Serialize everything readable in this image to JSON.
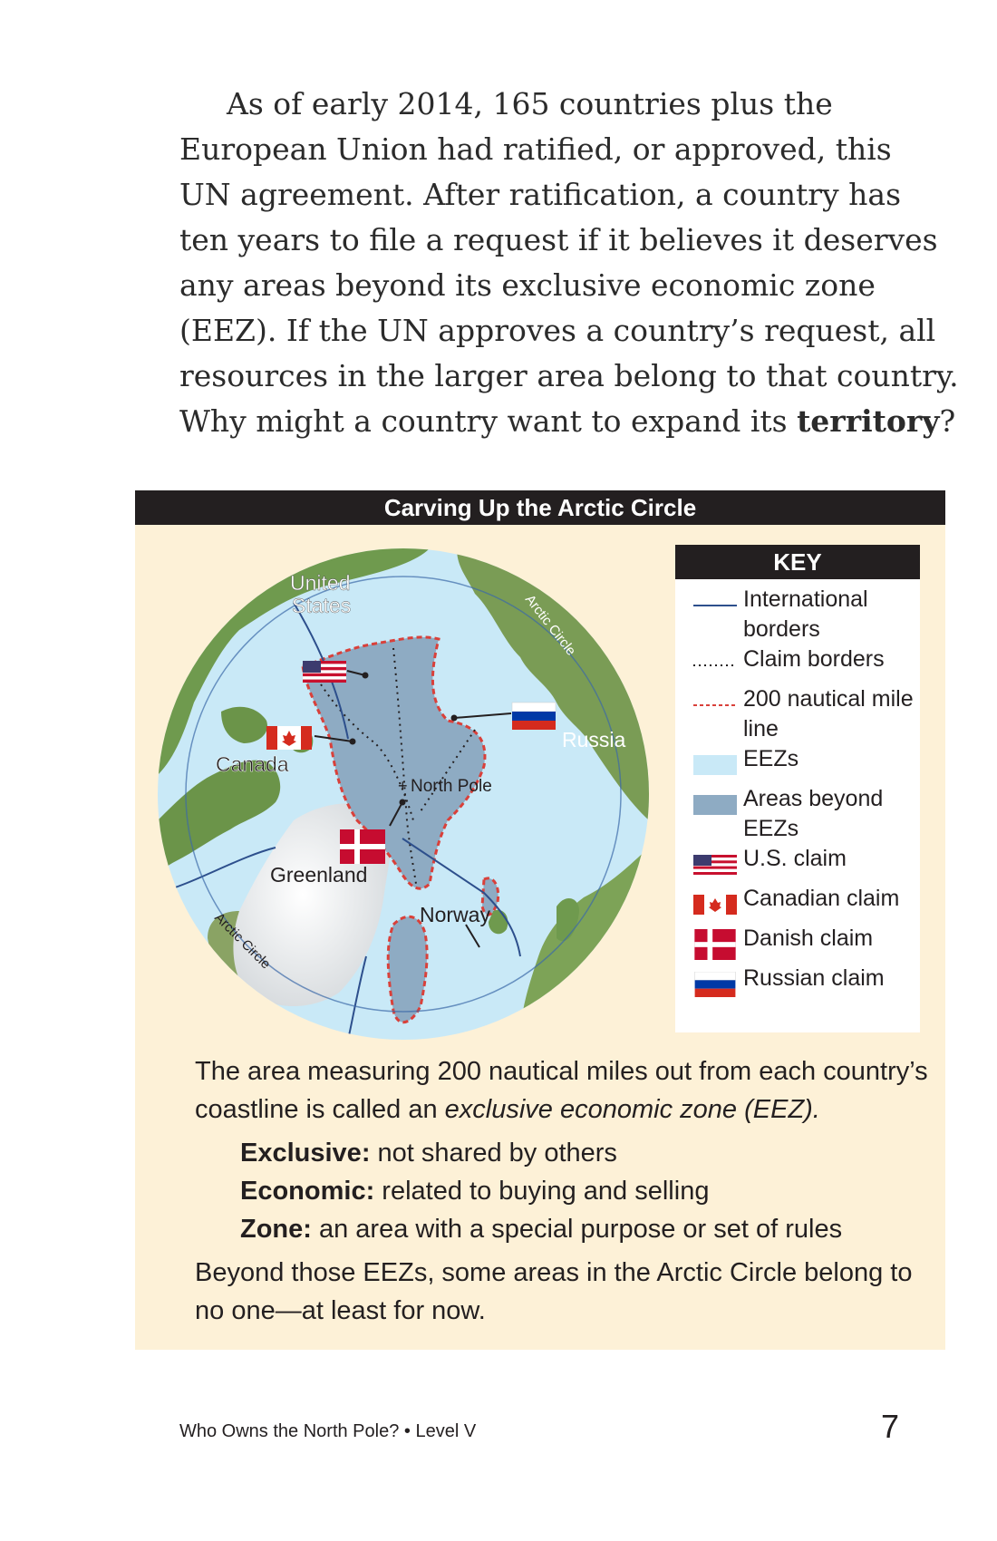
{
  "intro": {
    "lines": [
      "As of early 2014, 165 countries plus the",
      "European Union had ratified, or approved, this",
      "UN agreement. After ratification, a country has",
      "ten years to file a request if it believes it deserves",
      "any areas beyond its exclusive economic zone",
      "(EEZ). If the UN approves a country’s request, all",
      "resources in the larger area belong to that country."
    ],
    "last_line_before": "Why might a country want to expand its ",
    "last_line_bold": "territory",
    "last_line_after": "?"
  },
  "sidebar": {
    "title": "Carving Up the Arctic Circle",
    "map": {
      "labels": {
        "united_states_1": "United",
        "united_states_2": "States",
        "canada": "Canada",
        "greenland": "Greenland",
        "russia": "Russia",
        "norway": "Norway",
        "north_pole": "North Pole",
        "arctic_circle_top": "Arctic Circle",
        "arctic_circle_bottom": "Arctic Circle"
      }
    },
    "key": {
      "title": "KEY",
      "items": [
        {
          "label": "International borders",
          "swatch": "solid-line-icon"
        },
        {
          "label": "Claim borders",
          "swatch": "dotted-line-icon"
        },
        {
          "label": "200 nautical mile line",
          "swatch": "dashed-red-line-icon"
        },
        {
          "label": "EEZs",
          "swatch": "light-blue-fill",
          "color": "#c9e9f7"
        },
        {
          "label": "Areas beyond EEZs",
          "swatch": "gray-blue-fill",
          "color": "#8eabc3"
        },
        {
          "label": "U.S. claim",
          "swatch": "us-flag-icon"
        },
        {
          "label": "Canadian claim",
          "swatch": "canada-flag-icon"
        },
        {
          "label": "Danish claim",
          "swatch": "denmark-flag-icon"
        },
        {
          "label": "Russian claim",
          "swatch": "russia-flag-icon"
        }
      ]
    },
    "caption": {
      "p1_before": "The area measuring 200 nautical miles out from each country’s coastline is called an ",
      "p1_italic": "exclusive economic zone (EEZ).",
      "definitions": [
        {
          "term": "Exclusive:",
          "def": " not shared by others"
        },
        {
          "term": "Economic:",
          "def": " related to buying and selling"
        },
        {
          "term": "Zone:",
          "def": " an area with a special purpose or set of rules"
        }
      ],
      "p2": "Beyond those EEZs, some areas in the Arctic Circle belong to no one—at least for now."
    }
  },
  "footer": {
    "title": "Who Owns the North Pole? • Level V",
    "page_number": "7"
  },
  "colors": {
    "sidebar_bg": "#fdf1d7",
    "bar_bg": "#231f20",
    "ocean": "#c9e9f7",
    "beyond_eez": "#8eabc3",
    "land": "#6f9a4e",
    "border_line": "#2d4f8c",
    "nautical_line": "#d9403a"
  }
}
